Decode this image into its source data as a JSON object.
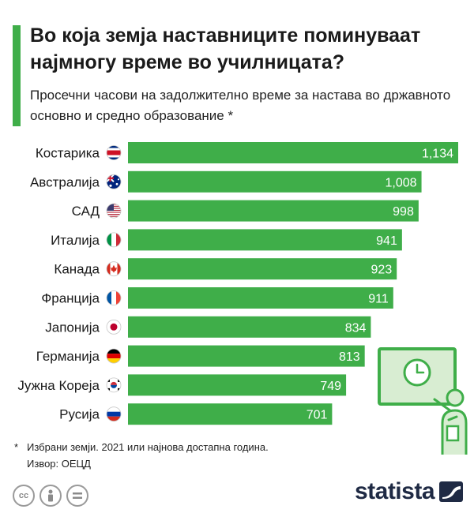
{
  "title": "Во која земја наставниците поминуваат најмногу време во училницата?",
  "subtitle": "Просечни часови на задолжително време за настава во државното основно и средно образование *",
  "chart_data": {
    "type": "bar",
    "orientation": "horizontal",
    "categories": [
      "Костарика",
      "Австралија",
      "САД",
      "Италија",
      "Канада",
      "Франција",
      "Јапонија",
      "Германија",
      "Јужна Кореја",
      "Русија"
    ],
    "values": [
      1134,
      1008,
      998,
      941,
      923,
      911,
      834,
      813,
      749,
      701
    ],
    "value_labels": [
      "1,134",
      "1,008",
      "998",
      "941",
      "923",
      "911",
      "834",
      "813",
      "749",
      "701"
    ],
    "flags": [
      "costa-rica-flag-icon",
      "australia-flag-icon",
      "usa-flag-icon",
      "italy-flag-icon",
      "canada-flag-icon",
      "france-flag-icon",
      "japan-flag-icon",
      "germany-flag-icon",
      "south-korea-flag-icon",
      "russia-flag-icon"
    ],
    "bar_color": "#3fae49",
    "xlim": [
      0,
      1134
    ]
  },
  "footnote": {
    "marker": "*",
    "text": "Избрани земји. 2021 или најнова достапна година.",
    "source": "Извор: ОЕЦД"
  },
  "brand": "statista",
  "colors": {
    "accent": "#3fae49",
    "brand": "#1f2a44"
  }
}
